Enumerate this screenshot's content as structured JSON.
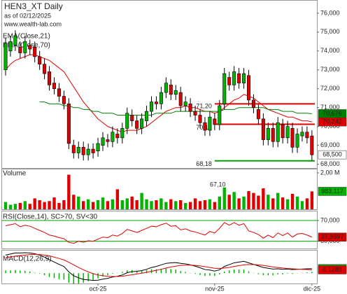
{
  "chart_data": {
    "type": "candlestick",
    "title": "HEN3_XT Daily",
    "subtitle": "as of 02/12/2025",
    "source": "www.wealth-lab.com",
    "categories": [
      null,
      null,
      null,
      null,
      null,
      null,
      null,
      null,
      null,
      null,
      null,
      null,
      null,
      null,
      null,
      null,
      null,
      null,
      null,
      "oct-25",
      null,
      null,
      null,
      null,
      null,
      null,
      null,
      null,
      null,
      null,
      null,
      null,
      null,
      null,
      null,
      null,
      null,
      null,
      null,
      null,
      null,
      null,
      null,
      "nov-25",
      null,
      null,
      null,
      null,
      null,
      null,
      null,
      null,
      null,
      null,
      null,
      null,
      null,
      null,
      null,
      null,
      null,
      null,
      null,
      "dic-25"
    ],
    "open": [
      73.0,
      74.0,
      74.3,
      74.2,
      73.9,
      74.3,
      74.2,
      73.7,
      73.3,
      72.9,
      72.3,
      72.0,
      71.6,
      71.2,
      69.0,
      68.6,
      68.9,
      68.5,
      68.8,
      68.7,
      69.0,
      69.3,
      69.2,
      69.6,
      69.4,
      69.9,
      70.6,
      70.3,
      69.9,
      70.3,
      70.8,
      71.3,
      71.2,
      71.8,
      72.2,
      71.7,
      71.8,
      71.1,
      71.2,
      70.8,
      70.6,
      70.2,
      69.8,
      70.4,
      70.1,
      71.2,
      72.6,
      72.2,
      72.8,
      72.3,
      72.7,
      71.4,
      70.9,
      70.4,
      69.3,
      69.9,
      69.2,
      70.1,
      69.4,
      69.9,
      68.9,
      69.5,
      69.7,
      69.5
    ],
    "high": [
      74.7,
      74.8,
      75.1,
      74.5,
      74.8,
      74.6,
      74.5,
      74.0,
      73.6,
      73.2,
      72.6,
      72.3,
      71.9,
      71.5,
      69.3,
      69.2,
      69.2,
      69.1,
      69.1,
      69.4,
      69.7,
      69.6,
      70.0,
      69.9,
      70.2,
      71.0,
      70.9,
      70.6,
      70.7,
      71.1,
      71.6,
      71.6,
      72.1,
      72.6,
      72.5,
      72.2,
      72.1,
      71.6,
      71.5,
      71.1,
      70.9,
      70.5,
      70.8,
      70.7,
      71.4,
      73.1,
      72.9,
      73.2,
      73.1,
      73.1,
      73.0,
      71.7,
      71.2,
      70.7,
      70.2,
      70.2,
      70.5,
      70.4,
      70.3,
      70.2,
      69.9,
      70.0,
      70.0,
      69.8
    ],
    "low": [
      72.7,
      73.7,
      74.0,
      73.6,
      73.6,
      73.8,
      73.4,
      73.0,
      72.5,
      71.9,
      71.7,
      71.3,
      70.9,
      68.8,
      68.3,
      68.3,
      68.2,
      68.2,
      68.3,
      68.4,
      68.7,
      68.9,
      68.9,
      69.1,
      69.1,
      69.6,
      70.0,
      69.6,
      69.6,
      70.0,
      70.5,
      70.9,
      70.9,
      71.5,
      71.4,
      71.4,
      70.8,
      70.8,
      70.5,
      70.3,
      69.9,
      69.5,
      69.5,
      69.8,
      69.8,
      70.9,
      71.9,
      71.9,
      72.0,
      72.0,
      71.1,
      70.7,
      70.1,
      69.0,
      69.0,
      68.9,
      68.9,
      69.1,
      69.1,
      68.6,
      68.6,
      69.2,
      69.1,
      68.2
    ],
    "close": [
      74.4,
      74.5,
      74.8,
      73.9,
      74.5,
      74.1,
      73.7,
      73.3,
      72.8,
      72.2,
      72.0,
      71.6,
      71.2,
      69.1,
      68.6,
      68.9,
      68.5,
      68.8,
      68.6,
      69.1,
      69.4,
      69.2,
      69.7,
      69.4,
      69.9,
      70.7,
      70.3,
      69.9,
      70.4,
      70.8,
      71.3,
      71.2,
      71.8,
      72.3,
      71.7,
      71.9,
      71.1,
      71.3,
      70.8,
      70.6,
      70.2,
      69.8,
      70.5,
      70.1,
      71.1,
      72.8,
      72.2,
      72.9,
      72.3,
      72.8,
      71.4,
      71.0,
      70.4,
      69.3,
      69.9,
      69.2,
      70.2,
      69.4,
      70.0,
      68.9,
      69.6,
      69.7,
      69.4,
      68.5
    ],
    "close_label": "68,500",
    "up_color": "#00b400",
    "down_color": "#e00000",
    "ylim": [
      67.8,
      76.7
    ],
    "yticks": [
      {
        "value": 68,
        "label": "68,000"
      },
      {
        "value": 69,
        "label": "69,000"
      },
      {
        "value": 70,
        "label": "70,000"
      },
      {
        "value": 71,
        "label": "71,000"
      },
      {
        "value": 72,
        "label": "72,000"
      },
      {
        "value": 73,
        "label": "73,000"
      },
      {
        "value": 74,
        "label": "74,000"
      },
      {
        "value": 75,
        "label": "75,000"
      },
      {
        "value": 76,
        "label": "76,000"
      }
    ],
    "series": [
      {
        "name": "EMA(Close,21)",
        "color": "#e00000",
        "last_label": "70,242",
        "values": [
          73.0,
          73.3,
          73.5,
          73.6,
          73.7,
          73.8,
          73.8,
          73.7,
          73.6,
          73.5,
          73.3,
          73.1,
          72.9,
          72.5,
          72.1,
          71.7,
          71.3,
          71.0,
          70.7,
          70.4,
          70.2,
          70.0,
          69.9,
          69.8,
          69.7,
          69.8,
          69.8,
          69.8,
          69.9,
          70.0,
          70.2,
          70.4,
          70.6,
          70.8,
          70.9,
          71.0,
          71.0,
          71.1,
          71.0,
          71.0,
          70.9,
          70.8,
          70.8,
          70.7,
          70.8,
          71.0,
          71.2,
          71.4,
          71.5,
          71.7,
          71.6,
          71.5,
          71.3,
          71.1,
          70.9,
          70.8,
          70.7,
          70.6,
          70.5,
          70.5,
          70.4,
          70.3,
          70.3,
          70.242
        ]
      },
      {
        "name": "EMA(Close,70)",
        "color": "#008000",
        "last_label": "70,676",
        "values": [
          null,
          null,
          null,
          null,
          null,
          null,
          null,
          71.3,
          71.3,
          71.2,
          71.2,
          71.2,
          71.1,
          71.1,
          71.0,
          71.0,
          70.9,
          70.9,
          70.8,
          70.8,
          70.7,
          70.7,
          70.7,
          70.6,
          70.6,
          70.6,
          70.6,
          70.6,
          70.6,
          70.6,
          70.6,
          70.7,
          70.7,
          70.7,
          70.7,
          70.8,
          70.8,
          70.8,
          70.8,
          70.8,
          70.8,
          70.8,
          70.8,
          70.8,
          70.8,
          70.9,
          70.9,
          70.9,
          71.0,
          71.0,
          71.0,
          71.0,
          71.0,
          71.0,
          70.9,
          70.9,
          70.9,
          70.8,
          70.8,
          70.8,
          70.7,
          70.7,
          70.7,
          70.676
        ]
      }
    ],
    "levels": [
      {
        "value": 71.2,
        "label": "71,20",
        "color": "#e00000"
      },
      {
        "value": 70.12,
        "label": "70,12",
        "color": "#e00000"
      },
      {
        "value": 68.18,
        "label": "68,18",
        "color": "#00a000"
      }
    ],
    "volume": {
      "title": "Volume",
      "note": "67,10",
      "last_label": "983,117",
      "ylim": [
        0,
        2230000
      ],
      "yticks": [
        {
          "value": 2000000,
          "label": "2,00 M"
        }
      ],
      "values": [
        400000,
        250000,
        300000,
        350000,
        450000,
        300000,
        600000,
        500000,
        400000,
        450000,
        650000,
        350000,
        500000,
        1900000,
        800000,
        700000,
        450000,
        550000,
        400000,
        500000,
        650000,
        450000,
        550000,
        1100000,
        500000,
        600000,
        700000,
        500000,
        900000,
        550000,
        450000,
        500000,
        600000,
        400000,
        550000,
        450000,
        500000,
        350000,
        400000,
        600000,
        450000,
        500000,
        550000,
        400000,
        700000,
        1200000,
        800000,
        950000,
        600000,
        700000,
        1000000,
        900000,
        750000,
        1150000,
        800000,
        600000,
        900000,
        650000,
        550000,
        850000,
        700000,
        450000,
        600000,
        983117
      ]
    },
    "rsi": {
      "title": "RSI(Close,14), SC>70, SV<30",
      "color": "#e00000",
      "level_color": "#00a000",
      "last_label": "37,9697",
      "ylim": [
        16,
        89
      ],
      "yticks": [
        {
          "value": 70,
          "label": "70,000"
        },
        {
          "value": 30,
          "label": "30,000"
        }
      ],
      "values": [
        60,
        62,
        64,
        58,
        61,
        59,
        55,
        51,
        47,
        42,
        40,
        37,
        35,
        28,
        26,
        30,
        28,
        31,
        30,
        34,
        38,
        37,
        42,
        40,
        45,
        53,
        50,
        47,
        51,
        55,
        59,
        58,
        62,
        65,
        59,
        60,
        52,
        54,
        50,
        48,
        45,
        42,
        49,
        46,
        55,
        66,
        61,
        66,
        61,
        64,
        50,
        47,
        43,
        36,
        42,
        37,
        46,
        41,
        46,
        38,
        44,
        45,
        42,
        37.9697
      ]
    },
    "macd": {
      "title": "MACD(12,26,9)",
      "ylim": [
        -0.4,
        0.9
      ],
      "macd_color": "#000000",
      "signal_color": "#e00000",
      "histogram_color": "#00b400",
      "macd_label": "0,1765",
      "signal_label": "0,1283",
      "macd": [
        0.7,
        0.74,
        0.78,
        0.78,
        0.79,
        0.78,
        0.75,
        0.7,
        0.62,
        0.52,
        0.43,
        0.34,
        0.26,
        0.05,
        -0.1,
        -0.18,
        -0.24,
        -0.26,
        -0.28,
        -0.27,
        -0.23,
        -0.2,
        -0.15,
        -0.12,
        -0.07,
        0.02,
        0.06,
        0.07,
        0.1,
        0.15,
        0.22,
        0.26,
        0.32,
        0.38,
        0.4,
        0.41,
        0.38,
        0.36,
        0.32,
        0.27,
        0.21,
        0.14,
        0.12,
        0.08,
        0.13,
        0.26,
        0.33,
        0.4,
        0.43,
        0.46,
        0.4,
        0.34,
        0.28,
        0.22,
        0.19,
        0.16,
        0.17,
        0.15,
        0.16,
        0.14,
        0.15,
        0.16,
        0.17,
        0.1765
      ],
      "signal": [
        0.6,
        0.63,
        0.66,
        0.68,
        0.7,
        0.72,
        0.73,
        0.72,
        0.7,
        0.67,
        0.62,
        0.57,
        0.51,
        0.42,
        0.32,
        0.22,
        0.13,
        0.05,
        -0.02,
        -0.07,
        -0.1,
        -0.12,
        -0.13,
        -0.13,
        -0.12,
        -0.09,
        -0.06,
        -0.03,
        0.0,
        0.03,
        0.07,
        0.11,
        0.15,
        0.2,
        0.24,
        0.27,
        0.3,
        0.31,
        0.31,
        0.3,
        0.28,
        0.25,
        0.22,
        0.19,
        0.18,
        0.2,
        0.22,
        0.26,
        0.29,
        0.32,
        0.33,
        0.33,
        0.32,
        0.3,
        0.27,
        0.24,
        0.22,
        0.2,
        0.18,
        0.17,
        0.16,
        0.15,
        0.14,
        0.1283
      ],
      "histogram": [
        0.1,
        0.11,
        0.12,
        0.1,
        0.09,
        0.06,
        0.02,
        -0.02,
        -0.08,
        -0.15,
        -0.19,
        -0.23,
        -0.25,
        -0.37,
        -0.42,
        -0.4,
        -0.37,
        -0.31,
        -0.26,
        -0.2,
        -0.13,
        -0.08,
        -0.02,
        0.01,
        0.05,
        0.11,
        0.12,
        0.1,
        0.1,
        0.12,
        0.15,
        0.15,
        0.17,
        0.18,
        0.16,
        0.14,
        0.08,
        0.05,
        0.01,
        -0.03,
        -0.07,
        -0.11,
        -0.1,
        -0.11,
        -0.05,
        0.06,
        0.11,
        0.14,
        0.14,
        0.14,
        0.07,
        0.01,
        -0.04,
        -0.08,
        -0.08,
        -0.08,
        -0.05,
        -0.05,
        -0.02,
        -0.03,
        -0.01,
        0.01,
        0.03,
        0.05
      ]
    }
  }
}
